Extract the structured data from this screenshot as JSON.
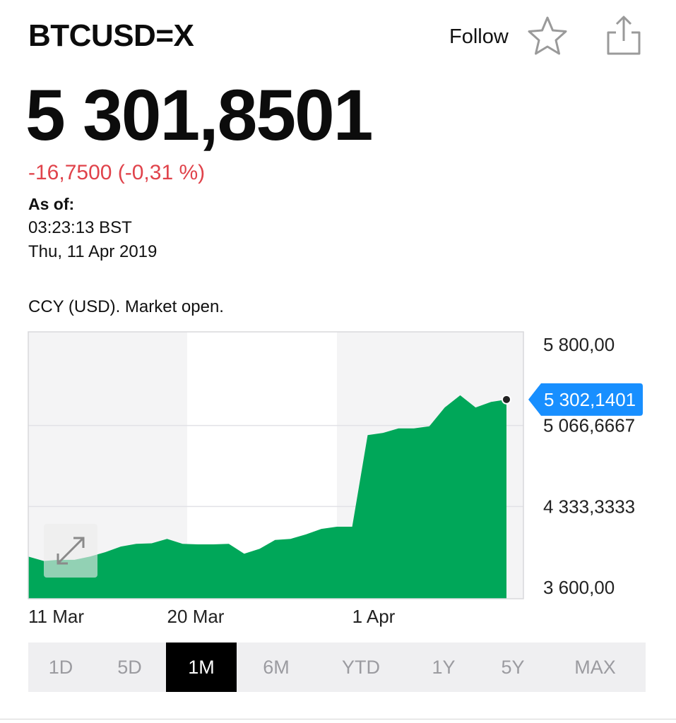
{
  "header": {
    "symbol": "BTCUSD=X",
    "follow_label": "Follow",
    "star_icon": "star-icon",
    "share_icon": "share-icon"
  },
  "quote": {
    "price": "5 301,8501",
    "change": "-16,7500 (-0,31 %)",
    "change_color": "#e0434b",
    "as_of_label": "As of:",
    "as_of_time": "03:23:13 BST",
    "as_of_date": "Thu, 11 Apr 2019",
    "market_status": "CCY (USD). Market open."
  },
  "chart_data": {
    "type": "area",
    "color": "#00a759",
    "grid": true,
    "ylim": [
      3600,
      5800
    ],
    "y_ticks": [
      "5 800,00",
      "5 066,6667",
      "4 333,3333",
      "3 600,00"
    ],
    "y_tick_values": [
      5800,
      5066.6667,
      4333.3333,
      3600
    ],
    "x_ticks": [
      "11 Mar",
      "20 Mar",
      "1 Apr"
    ],
    "current_value_label": "5 302,1401",
    "current_value": 5302.1401,
    "current_label_color": "#188fff",
    "x": [
      "11 Mar",
      "12 Mar",
      "13 Mar",
      "14 Mar",
      "15 Mar",
      "16 Mar",
      "17 Mar",
      "18 Mar",
      "19 Mar",
      "20 Mar",
      "21 Mar",
      "22 Mar",
      "23 Mar",
      "24 Mar",
      "25 Mar",
      "26 Mar",
      "27 Mar",
      "28 Mar",
      "29 Mar",
      "30 Mar",
      "31 Mar",
      "1 Apr",
      "2 Apr",
      "3 Apr",
      "4 Apr",
      "5 Apr",
      "6 Apr",
      "7 Apr",
      "8 Apr",
      "9 Apr",
      "10 Apr",
      "11 Apr"
    ],
    "values": [
      3880,
      3840,
      3850,
      3850,
      3880,
      3920,
      3970,
      3995,
      4000,
      4040,
      3995,
      3990,
      3990,
      3995,
      3905,
      3950,
      4030,
      4040,
      4080,
      4130,
      4150,
      4150,
      4980,
      5000,
      5040,
      5040,
      5060,
      5230,
      5340,
      5230,
      5280,
      5302
    ]
  },
  "expand_icon": "expand-icon",
  "ranges": {
    "items": [
      "1D",
      "5D",
      "1M",
      "6M",
      "YTD",
      "1Y",
      "5Y",
      "MAX"
    ],
    "active": "1M"
  }
}
